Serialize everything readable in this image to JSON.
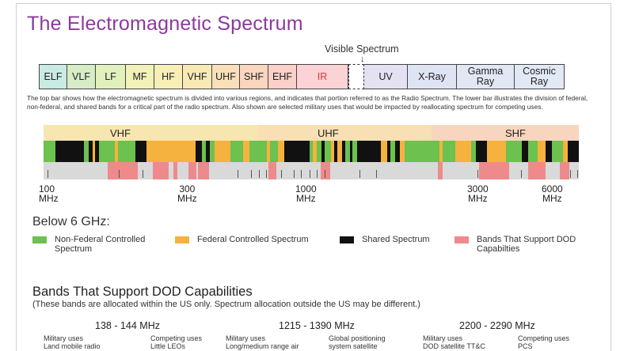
{
  "title": "The Electromagnetic Spectrum",
  "visible_label": "Visible Spectrum",
  "visible_arrow": "↓",
  "top_bands": [
    {
      "label": "ELF",
      "color": "#c9ebe4"
    },
    {
      "label": "VLF",
      "color": "#d6edc6"
    },
    {
      "label": "LF",
      "color": "#e2f0bd"
    },
    {
      "label": "MF",
      "color": "#f2f1b8"
    },
    {
      "label": "HF",
      "color": "#f8efb7"
    },
    {
      "label": "VHF",
      "color": "#f9e9b5"
    },
    {
      "label": "UHF",
      "color": "#f9e0ba"
    },
    {
      "label": "SHF",
      "color": "#fad6be"
    },
    {
      "label": "EHF",
      "color": "#fbd0c8"
    },
    {
      "label": "IR",
      "color": "#fbd2d6"
    },
    {
      "label": "",
      "color": "#ffffff"
    },
    {
      "label": "UV",
      "color": "#e4e1f3"
    },
    {
      "label": "X-Ray",
      "color": "#dfe4f5"
    },
    {
      "label": "Gamma Ray",
      "color": "#e2e7f6"
    },
    {
      "label": "Cosmic Ray",
      "color": "#e2e9f6"
    }
  ],
  "description": "The top bar shows how the electromagnetic spectrum is divided into various regions, and indicates that portion referred to as the Radio Spectrum. The lower bar illustrates the division of federal, non-federal, and shared bands for a critical part of the radio spectrum. Also shown are selected military uses that would be impacted by reallocating spectrum for competing uses.",
  "spectrum_headers": [
    {
      "label": "VHF",
      "color": "#f7e6b0"
    },
    {
      "label": "UHF",
      "color": "#f8dfb4"
    },
    {
      "label": "SHF",
      "color": "#f8d5be"
    }
  ],
  "freq_labels": [
    {
      "value": "100",
      "unit": "MHz"
    },
    {
      "value": "300",
      "unit": "MHz"
    },
    {
      "value": "1000",
      "unit": "MHz"
    },
    {
      "value": "3000",
      "unit": "MHz"
    },
    {
      "value": "6000",
      "unit": "MHz"
    }
  ],
  "colors": {
    "non_federal": "#6cc14f",
    "federal": "#f6b23e",
    "shared": "#111111",
    "dod": "#ee8a8c",
    "title": "#8a3a9c"
  },
  "below_label": "Below 6 GHz:",
  "legend": [
    {
      "label": "Non-Federal Controlled Spectrum",
      "color": "#6cc14f"
    },
    {
      "label": "Federal Controlled Spectrum",
      "color": "#f6b23e"
    },
    {
      "label": "Shared Spectrum",
      "color": "#111111"
    },
    {
      "label": "Bands That Support DOD Capabilties",
      "color": "#ee8a8c"
    }
  ],
  "bands_title": "Bands That Support DOD Capabilities",
  "bands_subtitle": "(These bands are allocated within the US only. Spectrum allocation outside the US may be different.)",
  "band_groups": [
    {
      "range": "138 - 144 MHz",
      "military": "Military uses",
      "military_item": "Land mobile radio",
      "competing": "Competing uses",
      "competing_item": "Little LEOs"
    },
    {
      "range": "1215 - 1390 MHz",
      "military": "Military uses",
      "military_item": "Long/medium range air",
      "competing": "Global positioning",
      "competing_item": "system     satellite"
    },
    {
      "range": "2200 - 2290 MHz",
      "military": "Military uses",
      "military_item": "DOD satellite TT&C",
      "competing": "Competing uses",
      "competing_item": "PCS"
    }
  ]
}
